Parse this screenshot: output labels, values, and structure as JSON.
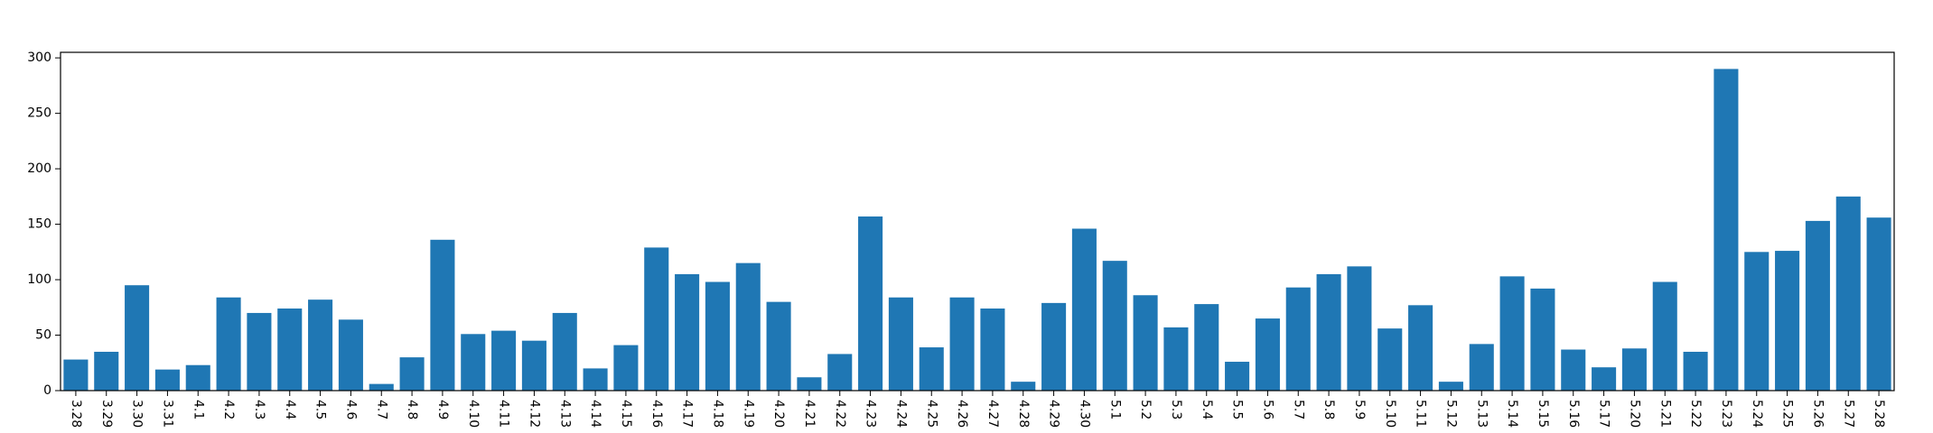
{
  "chart_data": {
    "type": "bar",
    "title": "",
    "xlabel": "",
    "ylabel": "",
    "ylim": [
      0,
      305
    ],
    "yticks": [
      0,
      50,
      100,
      150,
      200,
      250,
      300
    ],
    "grid": false,
    "bar_color": "#1f77b4",
    "categories": [
      "3.28",
      "3.29",
      "3.30",
      "3.31",
      "4.1",
      "4.2",
      "4.3",
      "4.4",
      "4.5",
      "4.6",
      "4.7",
      "4.8",
      "4.9",
      "4.10",
      "4.11",
      "4.12",
      "4.13",
      "4.14",
      "4.15",
      "4.16",
      "4.17",
      "4.18",
      "4.19",
      "4.20",
      "4.21",
      "4.22",
      "4.23",
      "4.24",
      "4.25",
      "4.26",
      "4.27",
      "4.28",
      "4.29",
      "4.30",
      "5.1",
      "5.2",
      "5.3",
      "5.4",
      "5.5",
      "5.6",
      "5.7",
      "5.8",
      "5.9",
      "5.10",
      "5.11",
      "5.12",
      "5.13",
      "5.14",
      "5.15",
      "5.16",
      "5.17",
      "5.20",
      "5.21",
      "5.22",
      "5.23",
      "5.24",
      "5.25",
      "5.26",
      "5.27",
      "5.28"
    ],
    "values": [
      28,
      35,
      95,
      19,
      23,
      84,
      70,
      74,
      82,
      64,
      6,
      30,
      136,
      51,
      54,
      45,
      70,
      20,
      41,
      129,
      105,
      98,
      115,
      80,
      12,
      33,
      157,
      84,
      39,
      84,
      74,
      8,
      79,
      146,
      117,
      86,
      57,
      78,
      26,
      65,
      93,
      105,
      112,
      56,
      77,
      8,
      42,
      103,
      92,
      37,
      21,
      38,
      98,
      35,
      290,
      125,
      126,
      153,
      175,
      156
    ]
  }
}
